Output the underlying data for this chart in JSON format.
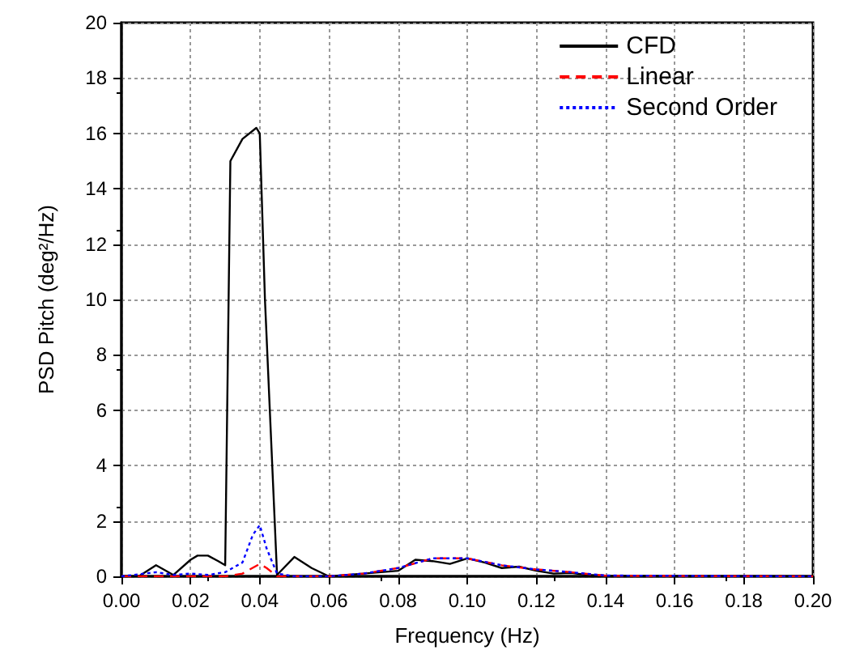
{
  "chart_data": {
    "type": "line",
    "xlabel": "Frequency (Hz)",
    "ylabel": "PSD Pitch (deg²/Hz)",
    "xlim": [
      0,
      0.2
    ],
    "xticks": [
      {
        "value": 0,
        "label": "0.00"
      },
      {
        "value": 0.02,
        "label": "0.02"
      },
      {
        "value": 0.04,
        "label": "0.04"
      },
      {
        "value": 0.06,
        "label": "0.06"
      },
      {
        "value": 0.08,
        "label": "0.08"
      },
      {
        "value": 0.1,
        "label": "0.10"
      },
      {
        "value": 0.12,
        "label": "0.12"
      },
      {
        "value": 0.14,
        "label": "0.14"
      },
      {
        "value": 0.16,
        "label": "0.16"
      },
      {
        "value": 0.18,
        "label": "0.18"
      },
      {
        "value": 0.2,
        "label": "0.20"
      }
    ],
    "ylim": [
      0,
      20
    ],
    "yticks": [
      0,
      2,
      4,
      6,
      8,
      10,
      12,
      14,
      16,
      18,
      20
    ],
    "grid": true,
    "legend": "top right",
    "marker": "none",
    "series": [
      {
        "name": "CFD",
        "color": "#000000",
        "line_style": "solid",
        "x": [
          0,
          0.005,
          0.01,
          0.015,
          0.02,
          0.022,
          0.025,
          0.028,
          0.03,
          0.0315,
          0.035,
          0.039,
          0.04,
          0.0415,
          0.045,
          0.05,
          0.055,
          0.06,
          0.07,
          0.08,
          0.085,
          0.09,
          0.095,
          0.1,
          0.105,
          0.11,
          0.115,
          0.12,
          0.125,
          0.13,
          0.135,
          0.14,
          0.2
        ],
        "values": [
          0,
          0,
          0.4,
          0.05,
          0.6,
          0.75,
          0.75,
          0.55,
          0.4,
          15.0,
          15.8,
          16.2,
          16.0,
          10,
          0.05,
          0.7,
          0.3,
          0,
          0.1,
          0.2,
          0.6,
          0.55,
          0.45,
          0.65,
          0.5,
          0.3,
          0.35,
          0.2,
          0.1,
          0.12,
          0.05,
          0.02,
          0
        ]
      },
      {
        "name": "Linear",
        "color": "#ff0000",
        "line_style": "dashed",
        "x": [
          0,
          0.03,
          0.035,
          0.04,
          0.042,
          0.045,
          0.06,
          0.07,
          0.08,
          0.09,
          0.1,
          0.11,
          0.12,
          0.13,
          0.14,
          0.2
        ],
        "values": [
          0,
          0,
          0.1,
          0.45,
          0.3,
          0,
          0,
          0.1,
          0.3,
          0.65,
          0.65,
          0.4,
          0.25,
          0.15,
          0.02,
          0
        ]
      },
      {
        "name": "Second Order",
        "color": "#0000ff",
        "line_style": "dotted",
        "x": [
          0,
          0.01,
          0.015,
          0.02,
          0.025,
          0.03,
          0.035,
          0.038,
          0.04,
          0.042,
          0.045,
          0.05,
          0.06,
          0.07,
          0.08,
          0.09,
          0.1,
          0.11,
          0.12,
          0.13,
          0.14,
          0.2
        ],
        "values": [
          0,
          0.15,
          0.05,
          0.1,
          0.05,
          0.15,
          0.5,
          1.5,
          1.85,
          1.0,
          0.1,
          0,
          0,
          0.1,
          0.3,
          0.65,
          0.65,
          0.4,
          0.25,
          0.15,
          0.03,
          0
        ]
      }
    ]
  }
}
